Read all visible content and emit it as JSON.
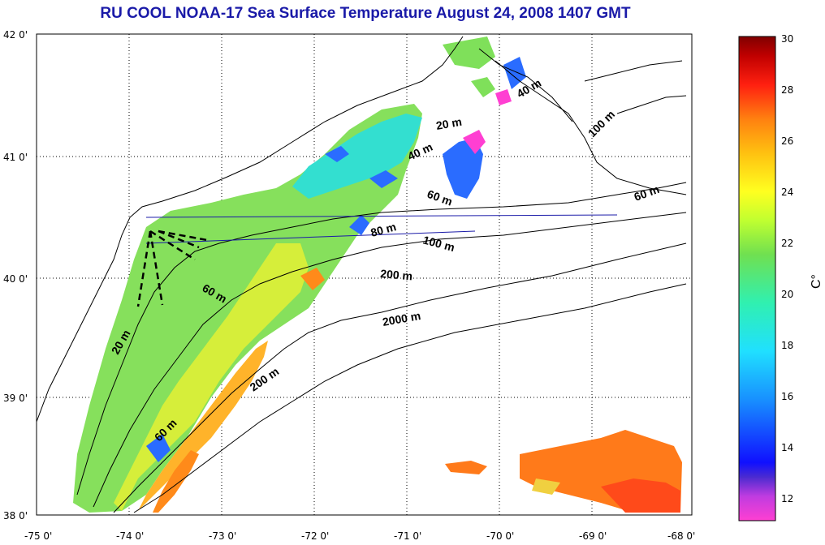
{
  "title": "RU COOL  NOAA-17 Sea Surface Temperature August 24, 2008 1407 GMT",
  "map": {
    "lon_labels": [
      "-75 0'",
      "-74 0'",
      "-73 0'",
      "-72 0'",
      "-71 0'",
      "-70 0'",
      "-69 0'",
      "-68 0'"
    ],
    "lat_labels": [
      "42 0'",
      "41 0'",
      "40 0'",
      "39 0'",
      "38 0'"
    ],
    "contour_labels": [
      "40 m",
      "20 m",
      "100 m",
      "40 m",
      "60 m",
      "60 m",
      "80 m",
      "100 m",
      "200 m",
      "60 m",
      "2000 m",
      "20 m",
      "200 m",
      "60 m"
    ]
  },
  "colorbar": {
    "unit_label": "C°",
    "tick_labels": [
      "30",
      "28",
      "26",
      "24",
      "22",
      "20",
      "18",
      "16",
      "14",
      "12"
    ],
    "range": [
      11,
      30
    ]
  },
  "colors": {
    "title": "#1a1aa8",
    "sst_cool": "#2a6cff",
    "sst_mid": "#7fe05a",
    "sst_warm": "#ff7a1a"
  }
}
